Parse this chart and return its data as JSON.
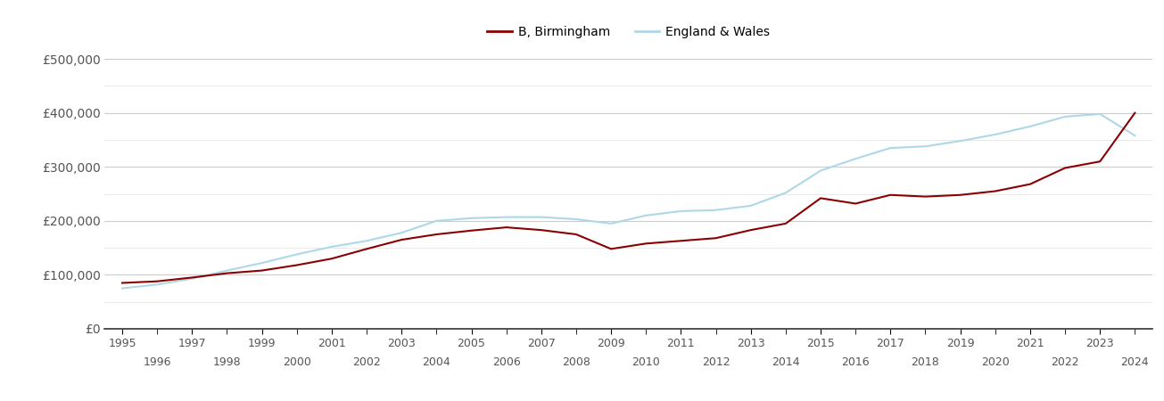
{
  "legend_labels": [
    "B, Birmingham",
    "England & Wales"
  ],
  "birmingham_years": [
    1995,
    1996,
    1997,
    1998,
    1999,
    2000,
    2001,
    2002,
    2003,
    2004,
    2005,
    2006,
    2007,
    2008,
    2009,
    2010,
    2011,
    2012,
    2013,
    2014,
    2015,
    2016,
    2017,
    2018,
    2019,
    2020,
    2021,
    2022,
    2023,
    2024
  ],
  "birmingham_values": [
    85000,
    88000,
    95000,
    103000,
    108000,
    118000,
    130000,
    148000,
    165000,
    175000,
    182000,
    188000,
    183000,
    175000,
    148000,
    158000,
    163000,
    168000,
    183000,
    195000,
    242000,
    232000,
    248000,
    245000,
    248000,
    255000,
    268000,
    298000,
    310000,
    400000
  ],
  "england_years": [
    1995,
    1996,
    1997,
    1998,
    1999,
    2000,
    2001,
    2002,
    2003,
    2004,
    2005,
    2006,
    2007,
    2008,
    2009,
    2010,
    2011,
    2012,
    2013,
    2014,
    2015,
    2016,
    2017,
    2018,
    2019,
    2020,
    2021,
    2022,
    2023,
    2024
  ],
  "england_values": [
    75000,
    82000,
    93000,
    108000,
    122000,
    138000,
    152000,
    163000,
    178000,
    200000,
    205000,
    207000,
    207000,
    203000,
    195000,
    210000,
    218000,
    220000,
    228000,
    252000,
    293000,
    315000,
    335000,
    338000,
    348000,
    360000,
    375000,
    393000,
    398000,
    358000
  ],
  "ylim": [
    0,
    520000
  ],
  "yticks_major": [
    0,
    100000,
    200000,
    300000,
    400000,
    500000
  ],
  "yticks_minor": [
    50000,
    150000,
    250000,
    350000,
    450000
  ],
  "ytick_labels": [
    "£0",
    "£100,000",
    "£200,000",
    "£300,000",
    "£400,000",
    "£500,000"
  ],
  "xlim_start": 1994.5,
  "xlim_end": 2024.5,
  "background_color": "#ffffff",
  "grid_color_major": "#cccccc",
  "grid_color_minor": "#e5e5e5",
  "birmingham_color": "#8B0000",
  "england_color": "#ADD8E6",
  "line_width": 1.5,
  "odd_years": [
    1995,
    1997,
    1999,
    2001,
    2003,
    2005,
    2007,
    2009,
    2011,
    2013,
    2015,
    2017,
    2019,
    2021,
    2023
  ],
  "even_years": [
    1996,
    1998,
    2000,
    2002,
    2004,
    2006,
    2008,
    2010,
    2012,
    2014,
    2016,
    2018,
    2020,
    2022,
    2024
  ]
}
